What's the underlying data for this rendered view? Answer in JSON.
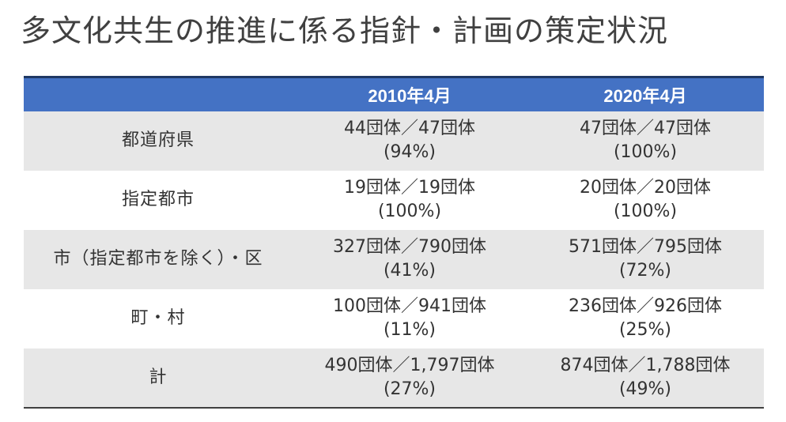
{
  "title": "多文化共生の推進に係る指針・計画の策定状況",
  "table": {
    "headers": [
      "",
      "2010年4月",
      "2020年4月"
    ],
    "rows": [
      {
        "label": "都道府県",
        "y2010": {
          "count": "44団体／47団体",
          "pct": "(94%)"
        },
        "y2020": {
          "count": "47団体／47団体",
          "pct": "(100%)"
        }
      },
      {
        "label": "指定都市",
        "y2010": {
          "count": "19団体／19団体",
          "pct": "(100%)"
        },
        "y2020": {
          "count": "20団体／20団体",
          "pct": "(100%)"
        }
      },
      {
        "label": "市（指定都市を除く）・区",
        "y2010": {
          "count": "327団体／790団体",
          "pct": "(41%)"
        },
        "y2020": {
          "count": "571団体／795団体",
          "pct": "(72%)"
        }
      },
      {
        "label": "町・村",
        "y2010": {
          "count": "100団体／941団体",
          "pct": "(11%)"
        },
        "y2020": {
          "count": "236団体／926団体",
          "pct": "(25%)"
        }
      },
      {
        "label": "計",
        "y2010": {
          "count": "490団体／1,797団体",
          "pct": "(27%)"
        },
        "y2020": {
          "count": "874団体／1,788団体",
          "pct": "(49%)"
        }
      }
    ]
  }
}
